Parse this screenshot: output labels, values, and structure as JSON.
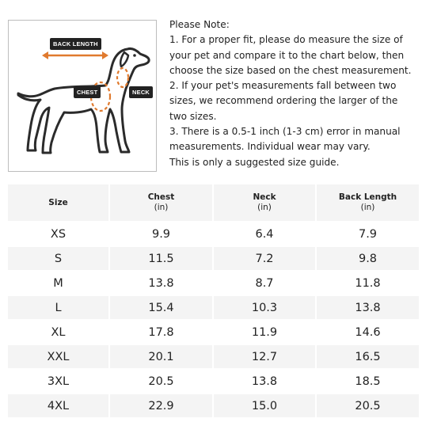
{
  "diagram": {
    "back_length_label": "BACK LENGTH",
    "chest_label": "CHEST",
    "neck_label": "NECK",
    "accent_color": "#e07a2e"
  },
  "note": {
    "title": "Please Note:",
    "line1": "1. For a proper fit, please do measure the size of your pet and compare it to the chart below, then choose the size based on the chest measurement.",
    "line2": "2. If your pet's measurements fall between two sizes, we recommend ordering the larger of the two sizes.",
    "line3": "3. There is a 0.5-1 inch (1-3 cm) error in manual measurements. Individual wear may vary.",
    "line4": "This is only a suggested size guide."
  },
  "table": {
    "headers": {
      "size": "Size",
      "chest": "Chest",
      "chest_unit": "(in)",
      "neck": "Neck",
      "neck_unit": "(in)",
      "back": "Back Length",
      "back_unit": "(in)"
    },
    "rows": [
      {
        "size": "XS",
        "chest": "9.9",
        "neck": "6.4",
        "back": "7.9"
      },
      {
        "size": "S",
        "chest": "11.5",
        "neck": "7.2",
        "back": "9.8"
      },
      {
        "size": "M",
        "chest": "13.8",
        "neck": "8.7",
        "back": "11.8"
      },
      {
        "size": "L",
        "chest": "15.4",
        "neck": "10.3",
        "back": "13.8"
      },
      {
        "size": "XL",
        "chest": "17.8",
        "neck": "11.9",
        "back": "14.6"
      },
      {
        "size": "XXL",
        "chest": "20.1",
        "neck": "12.7",
        "back": "16.5"
      },
      {
        "size": "3XL",
        "chest": "20.5",
        "neck": "13.8",
        "back": "18.5"
      },
      {
        "size": "4XL",
        "chest": "22.9",
        "neck": "15.0",
        "back": "20.5"
      }
    ]
  }
}
